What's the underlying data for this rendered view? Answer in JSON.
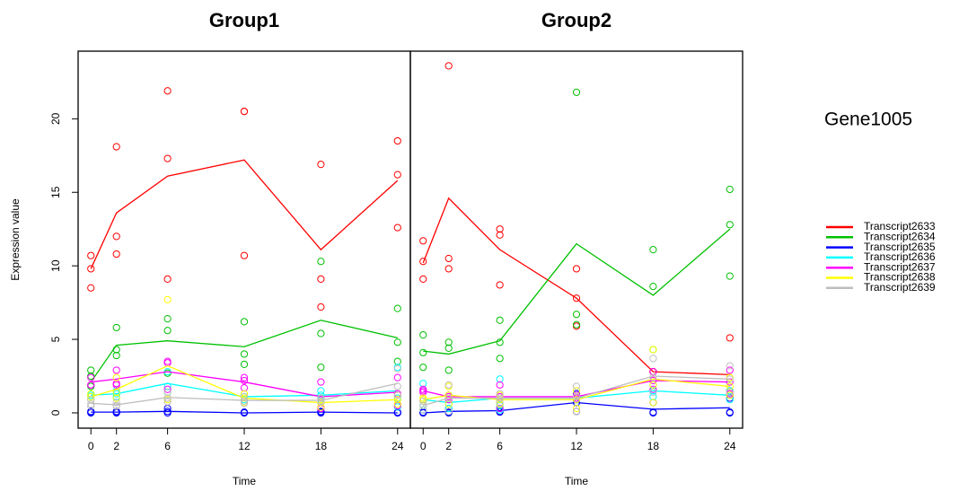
{
  "title": "Gene1005",
  "chart_data": [
    {
      "type": "line",
      "title": "Group1",
      "xlabel": "Time",
      "ylabel": "Expression value",
      "x": [
        0,
        2,
        6,
        12,
        18,
        24
      ],
      "xlim": [
        -1,
        25
      ],
      "xticks": [
        0,
        2,
        6,
        12,
        18,
        24
      ],
      "ylim": [
        -1.04,
        24.6
      ],
      "yticks": [
        0,
        5,
        10,
        15,
        20
      ],
      "series": [
        {
          "name": "Transcript2633",
          "color": "#ff0000",
          "values": [
            9.8,
            13.6,
            16.1,
            17.2,
            11.1,
            15.8
          ],
          "points": [
            [
              10.7,
              9.8,
              8.5
            ],
            [
              18.1,
              12.0,
              10.8
            ],
            [
              21.9,
              17.3,
              9.1
            ],
            [
              20.5,
              20.5,
              10.7
            ],
            [
              16.9,
              9.1,
              7.2
            ],
            [
              18.5,
              16.2,
              12.6
            ]
          ]
        },
        {
          "name": "Transcript2634",
          "color": "#00c000",
          "values": [
            2.1,
            4.6,
            4.9,
            4.5,
            6.3,
            5.1
          ],
          "points": [
            [
              2.9,
              2.5,
              1.8
            ],
            [
              5.8,
              4.3,
              3.9
            ],
            [
              6.4,
              5.6,
              2.7
            ],
            [
              6.2,
              4.0,
              3.3
            ],
            [
              10.3,
              5.4,
              3.1
            ],
            [
              7.1,
              4.8,
              3.5
            ]
          ]
        },
        {
          "name": "Transcript2635",
          "color": "#0000ff",
          "values": [
            0.05,
            0.05,
            0.1,
            0.0,
            0.05,
            0.0
          ],
          "points": [
            [
              0.1,
              0.05,
              0.0
            ],
            [
              0.1,
              0.05,
              0.0
            ],
            [
              0.3,
              0.1,
              0.0
            ],
            [
              0.05,
              0.0,
              0.0
            ],
            [
              0.1,
              0.05,
              0.0
            ],
            [
              0.05,
              0.0,
              0.0
            ]
          ]
        },
        {
          "name": "Transcript2636",
          "color": "#00ffff",
          "values": [
            1.2,
            1.3,
            2.0,
            1.1,
            1.2,
            1.5
          ],
          "points": [
            [
              1.3,
              1.2,
              1.1
            ],
            [
              1.5,
              1.3,
              1.1
            ],
            [
              2.8,
              1.8,
              1.4
            ],
            [
              1.3,
              1.1,
              0.9
            ],
            [
              1.5,
              1.2,
              0.9
            ],
            [
              3.1,
              1.0,
              0.4
            ]
          ]
        },
        {
          "name": "Transcript2637",
          "color": "#ff00ff",
          "values": [
            2.1,
            2.3,
            2.8,
            2.1,
            1.1,
            1.4
          ],
          "points": [
            [
              2.4,
              1.9,
              1.9
            ],
            [
              2.9,
              2.0,
              1.9
            ],
            [
              3.5,
              3.4,
              1.6
            ],
            [
              2.4,
              2.2,
              1.7
            ],
            [
              2.1,
              1.0,
              0.3
            ],
            [
              2.4,
              1.3,
              0.5
            ]
          ]
        },
        {
          "name": "Transcript2638",
          "color": "#ffff00",
          "values": [
            1.1,
            1.6,
            3.2,
            1.0,
            0.7,
            0.9
          ],
          "points": [
            [
              1.3,
              1.1,
              0.9
            ],
            [
              2.4,
              1.4,
              1.0
            ],
            [
              7.7,
              1.0,
              0.9
            ],
            [
              1.3,
              1.0,
              0.7
            ],
            [
              1.0,
              0.7,
              0.4
            ],
            [
              1.2,
              0.9,
              0.6
            ]
          ]
        },
        {
          "name": "Transcript2639",
          "color": "#bebebe",
          "values": [
            0.65,
            0.55,
            1.05,
            0.85,
            0.85,
            2.0
          ],
          "points": [
            [
              0.9,
              0.6,
              0.45
            ],
            [
              0.7,
              0.5,
              0.45
            ],
            [
              1.4,
              1.0,
              0.75
            ],
            [
              1.1,
              0.8,
              0.65
            ],
            [
              1.0,
              0.8,
              0.75
            ],
            [
              3.0,
              1.8,
              1.2
            ]
          ]
        }
      ]
    },
    {
      "type": "line",
      "title": "Group2",
      "xlabel": "Time",
      "x": [
        0,
        2,
        6,
        12,
        18,
        24
      ],
      "xlim": [
        -1,
        25
      ],
      "xticks": [
        0,
        2,
        6,
        12,
        18,
        24
      ],
      "ylim": [
        -1.04,
        24.6
      ],
      "series": [
        {
          "color": "#ff0000",
          "values": [
            10.2,
            14.6,
            11.1,
            7.8,
            2.8,
            2.6
          ],
          "points": [
            [
              11.7,
              10.3,
              9.1
            ],
            [
              23.6,
              10.5,
              9.8
            ],
            [
              12.5,
              12.1,
              8.7
            ],
            [
              9.8,
              7.8,
              5.9
            ],
            [
              2.8,
              2.8,
              2.8
            ],
            [
              5.1,
              1.5,
              1.2
            ]
          ]
        },
        {
          "color": "#00c000",
          "values": [
            4.2,
            4.0,
            4.9,
            11.5,
            8.0,
            12.5
          ],
          "points": [
            [
              5.3,
              4.1,
              3.1
            ],
            [
              4.8,
              4.4,
              2.9
            ],
            [
              6.3,
              4.8,
              3.7
            ],
            [
              21.8,
              6.7,
              6.0
            ],
            [
              11.1,
              8.6,
              4.3
            ],
            [
              15.2,
              12.8,
              9.3
            ]
          ]
        },
        {
          "color": "#0000ff",
          "values": [
            0.0,
            0.1,
            0.15,
            0.7,
            0.25,
            0.35
          ],
          "points": [
            [
              0.05,
              0.0,
              0.0
            ],
            [
              0.3,
              0.05,
              0.0
            ],
            [
              0.3,
              0.1,
              0.05
            ],
            [
              1.3,
              0.7,
              0.1
            ],
            [
              0.7,
              0.05,
              0.0
            ],
            [
              1.0,
              0.05,
              0.0
            ]
          ]
        },
        {
          "color": "#00ffff",
          "values": [
            0.9,
            0.7,
            1.0,
            1.0,
            1.5,
            1.2
          ],
          "points": [
            [
              2.0,
              0.5,
              0.2
            ],
            [
              1.2,
              0.6,
              0.3
            ],
            [
              2.3,
              0.5,
              0.2
            ],
            [
              1.1,
              1.0,
              0.9
            ],
            [
              1.9,
              1.5,
              1.1
            ],
            [
              1.5,
              1.2,
              0.9
            ]
          ]
        },
        {
          "color": "#ff00ff",
          "values": [
            1.5,
            1.1,
            1.1,
            1.1,
            2.2,
            2.1
          ],
          "points": [
            [
              1.6,
              1.5,
              1.4
            ],
            [
              1.2,
              1.1,
              0.9
            ],
            [
              1.9,
              1.1,
              0.3
            ],
            [
              1.2,
              1.1,
              1.0
            ],
            [
              2.8,
              2.2,
              1.6
            ],
            [
              2.9,
              2.1,
              1.3
            ]
          ]
        },
        {
          "color": "#ffff00",
          "values": [
            0.9,
            1.2,
            0.9,
            0.9,
            2.3,
            1.8
          ],
          "points": [
            [
              1.0,
              0.9,
              0.8
            ],
            [
              1.8,
              1.2,
              0.6
            ],
            [
              1.2,
              0.9,
              0.6
            ],
            [
              1.5,
              0.9,
              0.3
            ],
            [
              4.3,
              1.9,
              0.7
            ],
            [
              2.4,
              1.8,
              1.2
            ]
          ]
        },
        {
          "color": "#bebebe",
          "values": [
            0.5,
            1.0,
            1.0,
            1.0,
            2.5,
            2.3
          ],
          "points": [
            [
              0.8,
              0.5,
              0.2
            ],
            [
              1.9,
              1.0,
              0.1
            ],
            [
              1.3,
              1.0,
              0.7
            ],
            [
              1.8,
              1.1,
              0.1
            ],
            [
              3.7,
              2.4,
              1.4
            ],
            [
              3.2,
              2.3,
              1.4
            ]
          ]
        }
      ]
    }
  ]
}
